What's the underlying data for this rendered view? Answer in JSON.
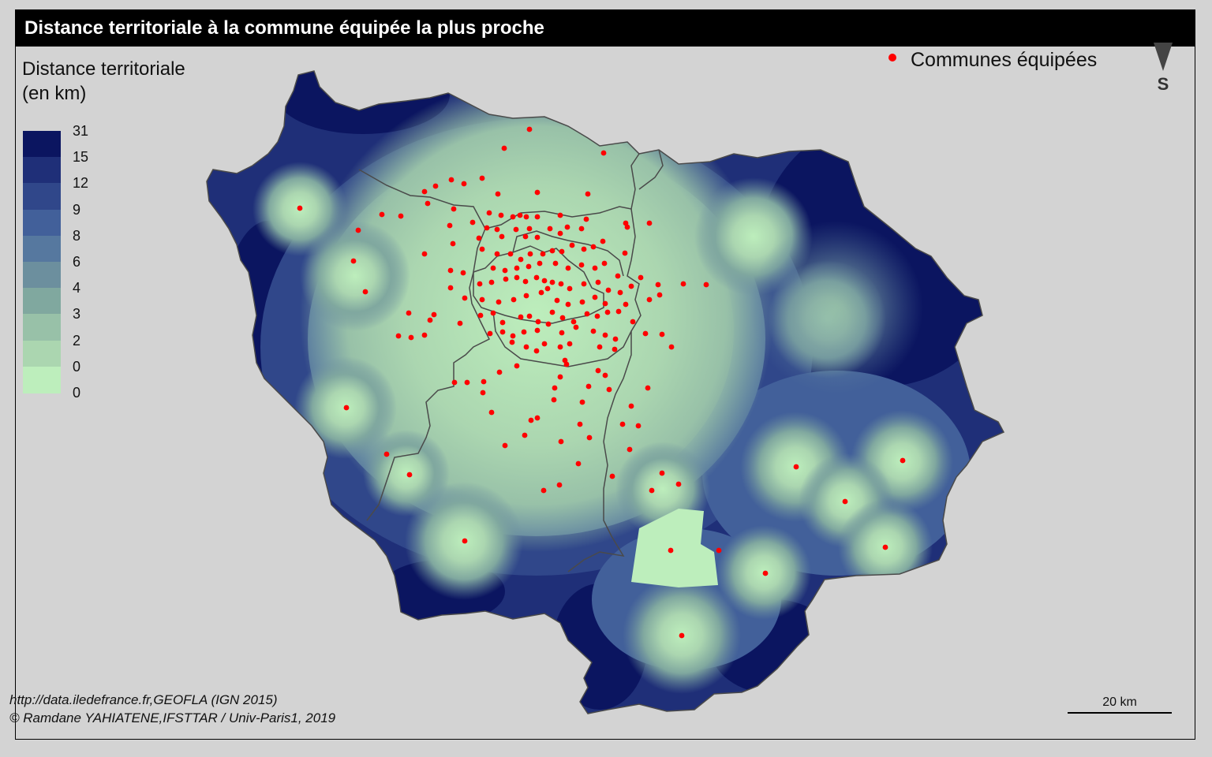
{
  "title": "Distance territoriale à la commune équipée la plus proche",
  "legend": {
    "title_line1": "Distance territoriale",
    "title_line2": "(en km)",
    "classes": [
      {
        "label": "31",
        "color": "#0b1560"
      },
      {
        "label": "15",
        "color": "#1f2f78"
      },
      {
        "label": "12",
        "color": "#30478a"
      },
      {
        "label": "9",
        "color": "#42609a"
      },
      {
        "label": "8",
        "color": "#56789f"
      },
      {
        "label": "6",
        "color": "#6c8f9e"
      },
      {
        "label": "4",
        "color": "#80a89f"
      },
      {
        "label": "3",
        "color": "#98c1a8"
      },
      {
        "label": "2",
        "color": "#abd6b0"
      },
      {
        "label": "0",
        "color": "#bdeebc"
      }
    ],
    "last_label": "0"
  },
  "points_legend": {
    "label": "Communes équipées",
    "color": "#ff0000"
  },
  "north_arrow": {
    "letter": "S",
    "icon": "north-arrow-icon"
  },
  "scale_bar": {
    "label": "20 km"
  },
  "source": {
    "line1": "http://data.iledefrance.fr,GEOFLA (IGN 2015)",
    "line2": "© Ramdane YAHIATENE,IFSTTAR / Univ-Paris1, 2019"
  }
}
